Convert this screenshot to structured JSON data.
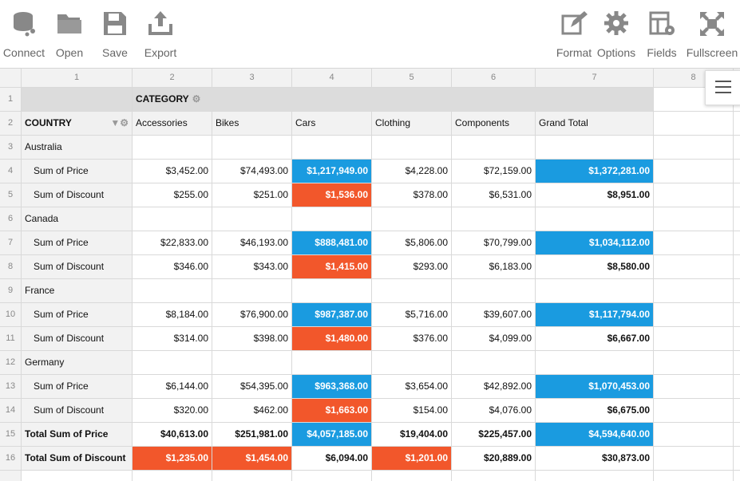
{
  "toolbar": {
    "left": [
      "Connect",
      "Open",
      "Save",
      "Export"
    ],
    "right": [
      "Format",
      "Options",
      "Fields",
      "Fullscreen"
    ]
  },
  "grid": {
    "column_numbers": [
      "1",
      "2",
      "3",
      "4",
      "5",
      "6",
      "7",
      "8"
    ],
    "row_numbers": [
      "1",
      "2",
      "3",
      "4",
      "5",
      "6",
      "7",
      "8",
      "9",
      "10",
      "11",
      "12",
      "13",
      "14",
      "15",
      "16"
    ],
    "category_header": "CATEGORY",
    "row_header": "COUNTRY",
    "columns": [
      {
        "label": "Accessories"
      },
      {
        "label": "Bikes"
      },
      {
        "label": "Cars"
      },
      {
        "label": "Clothing"
      },
      {
        "label": "Components"
      },
      {
        "label": "Grand Total",
        "bold": true
      }
    ],
    "rows": [
      {
        "label": "Australia"
      },
      {
        "label": "Sum of Price",
        "indent": true,
        "values": [
          "$3,452.00",
          "$74,493.00",
          "$1,217,949.00",
          "$4,228.00",
          "$72,159.00",
          "$1,372,281.00"
        ],
        "fills": [
          null,
          null,
          "#1a9be0",
          null,
          null,
          "#1a9be0"
        ]
      },
      {
        "label": "Sum of Discount",
        "indent": true,
        "values": [
          "$255.00",
          "$251.00",
          "$1,536.00",
          "$378.00",
          "$6,531.00",
          "$8,951.00"
        ],
        "fills": [
          null,
          null,
          "#f2572b",
          null,
          null,
          null
        ]
      },
      {
        "label": "Canada"
      },
      {
        "label": "Sum of Price",
        "indent": true,
        "values": [
          "$22,833.00",
          "$46,193.00",
          "$888,481.00",
          "$5,806.00",
          "$70,799.00",
          "$1,034,112.00"
        ],
        "fills": [
          null,
          null,
          "#1a9be0",
          null,
          null,
          "#1a9be0"
        ]
      },
      {
        "label": "Sum of Discount",
        "indent": true,
        "values": [
          "$346.00",
          "$343.00",
          "$1,415.00",
          "$293.00",
          "$6,183.00",
          "$8,580.00"
        ],
        "fills": [
          null,
          null,
          "#f2572b",
          null,
          null,
          null
        ]
      },
      {
        "label": "France"
      },
      {
        "label": "Sum of Price",
        "indent": true,
        "values": [
          "$8,184.00",
          "$76,900.00",
          "$987,387.00",
          "$5,716.00",
          "$39,607.00",
          "$1,117,794.00"
        ],
        "fills": [
          null,
          null,
          "#1a9be0",
          null,
          null,
          "#1a9be0"
        ]
      },
      {
        "label": "Sum of Discount",
        "indent": true,
        "values": [
          "$314.00",
          "$398.00",
          "$1,480.00",
          "$376.00",
          "$4,099.00",
          "$6,667.00"
        ],
        "fills": [
          null,
          null,
          "#f2572b",
          null,
          null,
          null
        ]
      },
      {
        "label": "Germany"
      },
      {
        "label": "Sum of Price",
        "indent": true,
        "values": [
          "$6,144.00",
          "$54,395.00",
          "$963,368.00",
          "$3,654.00",
          "$42,892.00",
          "$1,070,453.00"
        ],
        "fills": [
          null,
          null,
          "#1a9be0",
          null,
          null,
          "#1a9be0"
        ]
      },
      {
        "label": "Sum of Discount",
        "indent": true,
        "values": [
          "$320.00",
          "$462.00",
          "$1,663.00",
          "$154.00",
          "$4,076.00",
          "$6,675.00"
        ],
        "fills": [
          null,
          null,
          "#f2572b",
          null,
          null,
          null
        ]
      },
      {
        "label": "Total Sum of Price",
        "bold": true,
        "values": [
          "$40,613.00",
          "$251,981.00",
          "$4,057,185.00",
          "$19,404.00",
          "$225,457.00",
          "$4,594,640.00"
        ],
        "fills": [
          null,
          null,
          "#1a9be0",
          null,
          null,
          "#1a9be0"
        ]
      },
      {
        "label": "Total Sum of Discount",
        "bold": true,
        "values": [
          "$1,235.00",
          "$1,454.00",
          "$6,094.00",
          "$1,201.00",
          "$20,889.00",
          "$30,873.00"
        ],
        "fills": [
          "#f2572b",
          "#f2572b",
          null,
          "#f2572b",
          null,
          null
        ]
      }
    ]
  }
}
